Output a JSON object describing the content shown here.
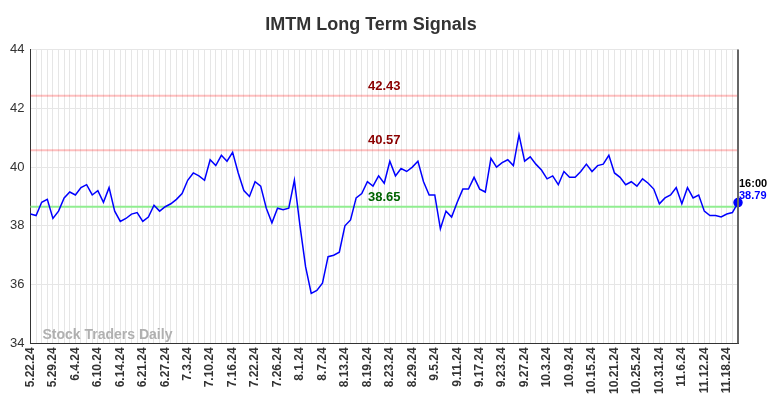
{
  "chart_data": {
    "type": "line",
    "title": "IMTM Long Term Signals",
    "watermark": "Stock Traders Daily",
    "time_label": "16:00",
    "color": "#0000ff",
    "grid": true,
    "ylim": [
      34,
      44
    ],
    "yticks": [
      34,
      36,
      38,
      40,
      42,
      44
    ],
    "levels": [
      {
        "value": 42.43,
        "color": "#8b0000"
      },
      {
        "value": 40.57,
        "color": "#8b0000"
      },
      {
        "value": 38.65,
        "color": "#006400"
      }
    ],
    "categories": [
      "5.22.24",
      null,
      null,
      null,
      "5.29.24",
      null,
      null,
      null,
      "6.4.24",
      null,
      null,
      null,
      "6.10.24",
      null,
      null,
      null,
      "6.14.24",
      null,
      null,
      null,
      "6.21.24",
      null,
      null,
      null,
      "6.27.24",
      null,
      null,
      null,
      "7.3.24",
      null,
      null,
      null,
      "7.10.24",
      null,
      null,
      null,
      "7.16.24",
      null,
      null,
      null,
      "7.22.24",
      null,
      null,
      null,
      "7.26.24",
      null,
      null,
      null,
      "8.1.24",
      null,
      null,
      null,
      "8.7.24",
      null,
      null,
      null,
      "8.13.24",
      null,
      null,
      null,
      "8.19.24",
      null,
      null,
      null,
      "8.23.24",
      null,
      null,
      null,
      "8.29.24",
      null,
      null,
      null,
      "9.5.24",
      null,
      null,
      null,
      "9.11.24",
      null,
      null,
      null,
      "9.17.24",
      null,
      null,
      null,
      "9.23.24",
      null,
      null,
      null,
      "9.27.24",
      null,
      null,
      null,
      "10.3.24",
      null,
      null,
      null,
      "10.9.24",
      null,
      null,
      null,
      "10.15.24",
      null,
      null,
      null,
      "10.21.24",
      null,
      null,
      null,
      "10.25.24",
      null,
      null,
      null,
      "10.31.24",
      null,
      null,
      null,
      "11.6.24",
      null,
      null,
      null,
      "11.12.24",
      null,
      null,
      null,
      "11.18.24",
      null,
      null
    ],
    "values": [
      38.4,
      38.35,
      38.8,
      38.9,
      38.25,
      38.5,
      38.95,
      39.15,
      39.05,
      39.3,
      39.4,
      39.05,
      39.2,
      38.8,
      39.3,
      38.5,
      38.15,
      38.25,
      38.4,
      38.45,
      38.15,
      38.3,
      38.7,
      38.5,
      38.65,
      38.75,
      38.9,
      39.1,
      39.55,
      39.8,
      39.7,
      39.55,
      40.25,
      40.05,
      40.4,
      40.2,
      40.5,
      39.8,
      39.2,
      39.0,
      39.5,
      39.35,
      38.6,
      38.1,
      38.6,
      38.55,
      38.6,
      39.55,
      38.0,
      36.6,
      35.7,
      35.8,
      36.05,
      36.95,
      37.0,
      37.1,
      38.0,
      38.2,
      38.95,
      39.1,
      39.5,
      39.35,
      39.7,
      39.45,
      40.2,
      39.7,
      39.95,
      39.85,
      40.0,
      40.2,
      39.5,
      39.05,
      39.05,
      37.9,
      38.5,
      38.3,
      38.8,
      39.25,
      39.25,
      39.65,
      39.25,
      39.15,
      40.3,
      40.0,
      40.15,
      40.25,
      40.05,
      41.1,
      40.2,
      40.35,
      40.1,
      39.9,
      39.6,
      39.7,
      39.4,
      39.85,
      39.65,
      39.65,
      39.85,
      40.1,
      39.85,
      40.05,
      40.1,
      40.4,
      39.8,
      39.65,
      39.4,
      39.5,
      39.35,
      39.6,
      39.45,
      39.25,
      38.75,
      38.95,
      39.05,
      39.3,
      38.75,
      39.3,
      38.95,
      39.05,
      38.5,
      38.35,
      38.35,
      38.3,
      38.4,
      38.45,
      38.79
    ]
  }
}
